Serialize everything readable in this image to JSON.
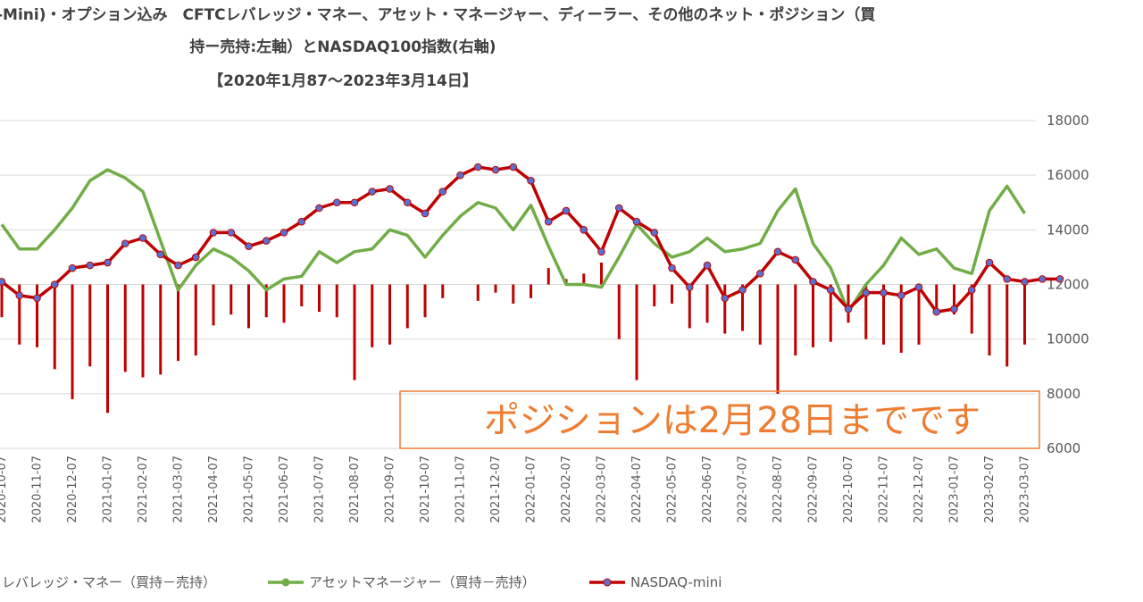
{
  "chart_data": {
    "type": "combo",
    "title": [
      "-Mini)・オプション込み　CFTCレバレッジ・マネー、アセット・マネージャー、ディーラー、その他のネット・ポジション（買",
      "持ー売持:左軸）とNASDAQ100指数(右軸)",
      "【2020年1月87～2023年3月14日】"
    ],
    "annotation": "ポジションは2月28日までです",
    "categories": [
      "2020-10-07",
      null,
      "2020-11-07",
      null,
      "2020-12-07",
      null,
      "2021-01-07",
      null,
      "2021-02-07",
      null,
      "2021-03-07",
      null,
      "2021-04-07",
      null,
      "2021-05-07",
      null,
      "2021-06-07",
      null,
      "2021-07-07",
      null,
      "2021-08-07",
      null,
      "2021-09-07",
      null,
      "2021-10-07",
      null,
      "2021-11-07",
      null,
      "2021-12-07",
      null,
      "2022-01-07",
      null,
      "2022-02-07",
      null,
      "2022-03-07",
      null,
      "2022-04-07",
      null,
      "2022-05-07",
      null,
      "2022-06-07",
      null,
      "2022-07-07",
      null,
      "2022-08-07",
      null,
      "2022-09-07",
      null,
      "2022-10-07",
      null,
      "2022-11-07",
      null,
      "2022-12-07",
      null,
      "2023-01-07",
      null,
      "2023-02-07",
      null,
      "2023-03-07",
      null,
      null
    ],
    "ylim": [
      6000,
      18000
    ],
    "yticks": [
      6000,
      8000,
      10000,
      12000,
      14000,
      16000,
      18000
    ],
    "grid": true,
    "baseline": 12000,
    "series": [
      {
        "name": "レバレッジ・マネー（買持－売持）",
        "type": "bar",
        "color": "#c00000",
        "values": [
          10800,
          9800,
          9700,
          8900,
          7800,
          9000,
          7300,
          8800,
          8600,
          8700,
          9200,
          9400,
          10500,
          10900,
          10400,
          10800,
          10600,
          11200,
          11000,
          10800,
          8500,
          9700,
          9800,
          10400,
          10800,
          11500,
          12000,
          11400,
          11700,
          11300,
          11500,
          12600,
          12200,
          12400,
          12800,
          10000,
          8500,
          11200,
          11300,
          10400,
          10600,
          10200,
          10300,
          9800,
          8000,
          9400,
          9700,
          9900,
          10600,
          10000,
          9800,
          9500,
          9800,
          10900,
          10900,
          10200,
          9400,
          9000,
          9800,
          null,
          null
        ]
      },
      {
        "name": "アセットマネージャー（買持－売持）",
        "type": "line",
        "color": "#70ad47",
        "values": [
          14200,
          13300,
          13300,
          14000,
          14800,
          15800,
          16200,
          15900,
          15400,
          13600,
          11800,
          12700,
          13300,
          13000,
          12500,
          11800,
          12200,
          12300,
          13200,
          12800,
          13200,
          13300,
          14000,
          13800,
          13000,
          13800,
          14500,
          15000,
          14800,
          14000,
          14900,
          13400,
          12000,
          12000,
          11900,
          13000,
          14200,
          13500,
          13000,
          13200,
          13700,
          13200,
          13300,
          13500,
          14700,
          15500,
          13500,
          12600,
          11000,
          12000,
          12700,
          13700,
          13100,
          13300,
          12600,
          12400,
          14700,
          15600,
          14600,
          null,
          null
        ]
      },
      {
        "name": "NASDAQ-mini",
        "type": "line",
        "color": "#c00000",
        "marker": "#5b6fd0",
        "values": [
          12100,
          11600,
          11500,
          12000,
          12600,
          12700,
          12800,
          13500,
          13700,
          13100,
          12700,
          13000,
          13900,
          13900,
          13400,
          13600,
          13900,
          14300,
          14800,
          15000,
          15000,
          15400,
          15500,
          15000,
          14600,
          15400,
          16000,
          16300,
          16200,
          16300,
          15800,
          14300,
          14700,
          14000,
          13200,
          14800,
          14300,
          13900,
          12600,
          11900,
          12700,
          11500,
          11800,
          12400,
          13200,
          12900,
          12100,
          11800,
          11100,
          11700,
          11700,
          11600,
          11900,
          11000,
          11100,
          11800,
          12800,
          12200,
          12100,
          12200,
          12200
        ]
      }
    ]
  }
}
